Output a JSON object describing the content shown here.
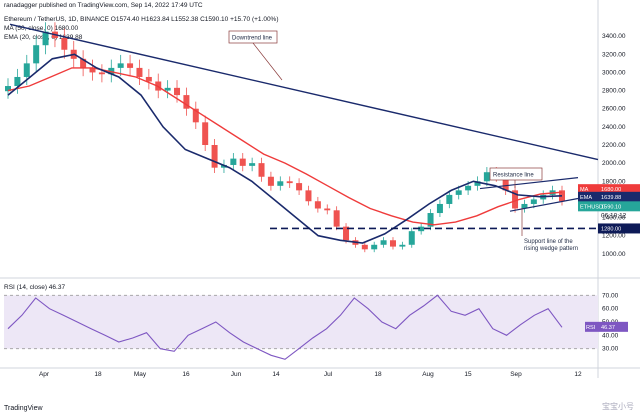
{
  "publisher": "ranadagger published on TradingView.com, Sep 14, 2022 17:49 UTC",
  "header": {
    "line1": "Ethereum / TetherUS, 1D, BINANCE  O1574.40  H1623.84  L1552.38  C1590.10  +15.70 (+1.00%)",
    "line2": "MA (50, close, 0)  1680.00",
    "line3": "EMA (20, close, 0)  1639.88"
  },
  "rsi_header": "RSI (14, close)  46.37",
  "footer_logo": "TradingView",
  "watermark": "宝宝小号",
  "colors": {
    "up": "#26a69a",
    "down": "#ef5350",
    "ma": "#ef3b3b",
    "ema": "#1a2a6c",
    "trend": "#1a2a6c",
    "support": "#0d1a57",
    "rsi": "#7e57c2",
    "rsi_band": "#ede7f6"
  },
  "chart_data": {
    "type": "candlestick",
    "symbol": "ETHUSDT",
    "interval": "1D",
    "ylim": [
      800,
      3600
    ],
    "y_ticks": [
      1000,
      1200,
      1400,
      1600,
      1800,
      2000,
      2200,
      2400,
      2600,
      2800,
      3000,
      3200,
      3400
    ],
    "x_ticks": [
      "Apr",
      "18",
      "May",
      "16",
      "Jun",
      "14",
      "Jul",
      "18",
      "Aug",
      "15",
      "Sep",
      "12"
    ],
    "close_path": [
      2850,
      2950,
      3100,
      3300,
      3450,
      3380,
      3250,
      3150,
      3050,
      3000,
      2980,
      3050,
      3100,
      3050,
      2950,
      2900,
      2800,
      2830,
      2750,
      2600,
      2450,
      2200,
      1950,
      1980,
      2050,
      1970,
      2000,
      1850,
      1750,
      1800,
      1780,
      1700,
      1580,
      1500,
      1480,
      1300,
      1150,
      1100,
      1050,
      1100,
      1150,
      1080,
      1100,
      1250,
      1300,
      1450,
      1550,
      1650,
      1700,
      1750,
      1800,
      1900,
      1850,
      1700,
      1500,
      1550,
      1600,
      1650,
      1700,
      1580
    ],
    "ma50_path": [
      2800,
      2850,
      2950,
      3050,
      3050,
      3000,
      2950,
      2850,
      2700,
      2550,
      2400,
      2250,
      2100,
      2000,
      1880,
      1750,
      1620,
      1500,
      1420,
      1350,
      1320,
      1350,
      1420,
      1520,
      1600,
      1660,
      1680
    ],
    "ema20_path": [
      2750,
      2950,
      3150,
      3200,
      3050,
      2950,
      2750,
      2400,
      2150,
      2050,
      1950,
      1800,
      1600,
      1400,
      1200,
      1150,
      1120,
      1220,
      1380,
      1550,
      1700,
      1800,
      1750,
      1650,
      1630,
      1640
    ],
    "last_price": 1590.1,
    "ma_value": 1680.0,
    "ema_value": 1639.88,
    "support_level": 1280.0,
    "price_labels": [
      "MA",
      "1680.00",
      "EMA",
      "1639.88",
      "ETHUSDT",
      "1590.10",
      "06:10:12",
      "1280.00"
    ],
    "annotations": [
      "Downtrend line",
      "Resistance line",
      "Support line of the rising wedge pattern"
    ],
    "rsi": {
      "ylim": [
        20,
        80
      ],
      "y_ticks": [
        70,
        60,
        50,
        40,
        30
      ],
      "levels": [
        30,
        70
      ],
      "value": 46.37,
      "label": "RSI",
      "path": [
        45,
        55,
        68,
        60,
        55,
        50,
        45,
        40,
        35,
        38,
        42,
        30,
        28,
        40,
        45,
        50,
        42,
        35,
        30,
        25,
        22,
        30,
        38,
        45,
        55,
        68,
        60,
        50,
        45,
        55,
        62,
        70,
        58,
        55,
        60,
        45,
        40,
        48,
        55,
        60,
        46
      ]
    }
  }
}
